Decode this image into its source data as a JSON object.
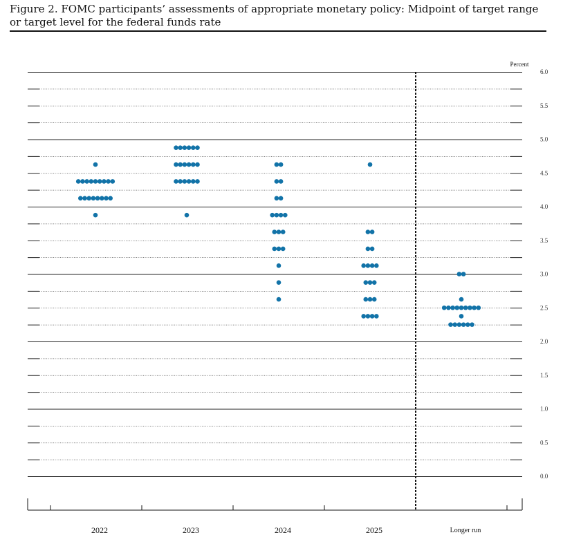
{
  "caption": "Figure 2.  FOMC participants’ assessments of appropriate monetary policy: Midpoint of target range or target level for the federal funds rate",
  "chart_data": {
    "type": "scatter",
    "title": "Figure 2.  FOMC participants’ assessments of appropriate monetary policy: Midpoint of target range or target level for the federal funds rate",
    "unit_label": "Percent",
    "categories": [
      "2022",
      "2023",
      "2024",
      "2025",
      "Longer run"
    ],
    "ylim": [
      0,
      6
    ],
    "y_ticks": [
      "0.0",
      "0.5",
      "1.0",
      "1.5",
      "2.0",
      "2.5",
      "3.0",
      "3.5",
      "4.0",
      "4.5",
      "5.0",
      "5.5",
      "6.0"
    ],
    "dot_color": "#1273a8",
    "series": [
      {
        "category": "2022",
        "points": [
          {
            "y": 4.625,
            "count": 1
          },
          {
            "y": 4.375,
            "count": 9
          },
          {
            "y": 4.125,
            "count": 8
          },
          {
            "y": 3.875,
            "count": 1
          }
        ]
      },
      {
        "category": "2023",
        "points": [
          {
            "y": 4.875,
            "count": 6
          },
          {
            "y": 4.625,
            "count": 6
          },
          {
            "y": 4.375,
            "count": 6
          },
          {
            "y": 3.875,
            "count": 1
          }
        ]
      },
      {
        "category": "2024",
        "points": [
          {
            "y": 4.625,
            "count": 2
          },
          {
            "y": 4.375,
            "count": 2
          },
          {
            "y": 4.125,
            "count": 2
          },
          {
            "y": 3.875,
            "count": 4
          },
          {
            "y": 3.625,
            "count": 3
          },
          {
            "y": 3.375,
            "count": 3
          },
          {
            "y": 3.125,
            "count": 1
          },
          {
            "y": 2.875,
            "count": 1
          },
          {
            "y": 2.625,
            "count": 1
          }
        ]
      },
      {
        "category": "2025",
        "points": [
          {
            "y": 4.625,
            "count": 1
          },
          {
            "y": 3.625,
            "count": 2
          },
          {
            "y": 3.375,
            "count": 2
          },
          {
            "y": 3.125,
            "count": 4
          },
          {
            "y": 2.875,
            "count": 3
          },
          {
            "y": 2.625,
            "count": 3
          },
          {
            "y": 2.375,
            "count": 4
          }
        ]
      },
      {
        "category": "Longer run",
        "points": [
          {
            "y": 3.0,
            "count": 2
          },
          {
            "y": 2.625,
            "count": 1
          },
          {
            "y": 2.5,
            "count": 9
          },
          {
            "y": 2.375,
            "count": 1
          },
          {
            "y": 2.25,
            "count": 6
          }
        ]
      }
    ]
  }
}
